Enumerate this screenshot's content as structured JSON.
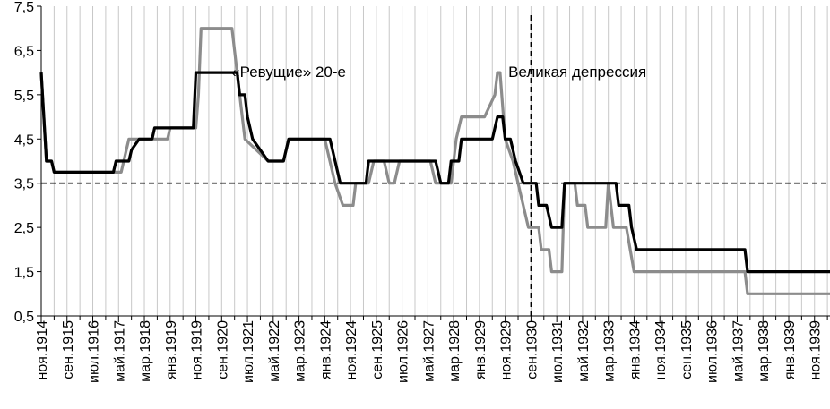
{
  "chart_data": {
    "type": "line",
    "title": "",
    "xlabel": "",
    "ylabel": "",
    "ylim": [
      0.5,
      7.5
    ],
    "y_ticks": [
      "0,5",
      "1,5",
      "2,5",
      "3,5",
      "4,5",
      "5,5",
      "6,5",
      "7,5"
    ],
    "x_tick_labels": [
      "ноя.1914",
      "сен.1915",
      "июл.1916",
      "май.1917",
      "мар.1918",
      "янв.1919",
      "ноя.1919",
      "сен.1920",
      "июл.1921",
      "май.1922",
      "мар.1923",
      "янв.1924",
      "ноя.1924",
      "сен.1925",
      "июл.1926",
      "май.1927",
      "мар.1928",
      "янв.1929",
      "ноя.1929",
      "сен.1930",
      "июл.1931",
      "май.1932",
      "мар.1933",
      "янв.1934",
      "ноя.1934",
      "сен.1935",
      "июл.1936",
      "май.1937",
      "мар.1938",
      "янв.1939",
      "ноя.1939"
    ],
    "x_range": [
      "1914-11",
      "1940-05"
    ],
    "grid": "vertical",
    "legend": "none",
    "reference_line": {
      "y": 3.5,
      "style": "dashed"
    },
    "divider": {
      "x": "1930-09",
      "style": "dashed"
    },
    "annotations": [
      {
        "text": "«Ревущие» 20-е",
        "x": "1922-11",
        "y": 6.0
      },
      {
        "text": "Великая депрессия",
        "x": "1932-03",
        "y": 6.0
      }
    ],
    "series": [
      {
        "color": "#8c8c8c",
        "points": [
          [
            "1914-11",
            6.0
          ],
          [
            "1914-12",
            5.0
          ],
          [
            "1915-01",
            4.0
          ],
          [
            "1915-03",
            4.0
          ],
          [
            "1915-04",
            3.75
          ],
          [
            "1917-06",
            3.75
          ],
          [
            "1917-08",
            4.25
          ],
          [
            "1917-09",
            4.5
          ],
          [
            "1918-12",
            4.5
          ],
          [
            "1919-01",
            4.75
          ],
          [
            "1919-11",
            4.75
          ],
          [
            "1919-12",
            5.5
          ],
          [
            "1920-01",
            7.0
          ],
          [
            "1920-02",
            7.0
          ],
          [
            "1921-01",
            7.0
          ],
          [
            "1921-04",
            5.5
          ],
          [
            "1921-06",
            4.5
          ],
          [
            "1922-03",
            4.0
          ],
          [
            "1922-09",
            4.0
          ],
          [
            "1922-11",
            4.5
          ],
          [
            "1924-01",
            4.5
          ],
          [
            "1924-05",
            3.5
          ],
          [
            "1924-08",
            3.0
          ],
          [
            "1924-12",
            3.0
          ],
          [
            "1925-01",
            3.5
          ],
          [
            "1925-06",
            3.5
          ],
          [
            "1925-08",
            4.0
          ],
          [
            "1925-12",
            4.0
          ],
          [
            "1926-02",
            3.5
          ],
          [
            "1926-04",
            3.5
          ],
          [
            "1926-06",
            4.0
          ],
          [
            "1927-06",
            4.0
          ],
          [
            "1927-08",
            3.5
          ],
          [
            "1928-02",
            3.5
          ],
          [
            "1928-04",
            4.5
          ],
          [
            "1928-06",
            5.0
          ],
          [
            "1929-03",
            5.0
          ],
          [
            "1929-07",
            5.5
          ],
          [
            "1929-08",
            6.0
          ],
          [
            "1929-09",
            6.0
          ],
          [
            "1929-11",
            4.5
          ],
          [
            "1930-02",
            4.0
          ],
          [
            "1930-04",
            3.5
          ],
          [
            "1930-08",
            2.5
          ],
          [
            "1930-10",
            2.5
          ],
          [
            "1930-12",
            2.5
          ],
          [
            "1931-01",
            2.0
          ],
          [
            "1931-04",
            2.0
          ],
          [
            "1931-05",
            1.5
          ],
          [
            "1931-09",
            1.5
          ],
          [
            "1931-10",
            3.5
          ],
          [
            "1932-02",
            3.5
          ],
          [
            "1932-03",
            3.0
          ],
          [
            "1932-06",
            3.0
          ],
          [
            "1932-07",
            2.5
          ],
          [
            "1933-02",
            2.5
          ],
          [
            "1933-03",
            3.5
          ],
          [
            "1933-05",
            2.5
          ],
          [
            "1933-10",
            2.5
          ],
          [
            "1934-01",
            1.5
          ],
          [
            "1937-08",
            1.5
          ],
          [
            "1937-09",
            1.0
          ],
          [
            "1940-05",
            1.0
          ]
        ]
      },
      {
        "color": "#000000",
        "points": [
          [
            "1914-11",
            6.0
          ],
          [
            "1914-12",
            5.0
          ],
          [
            "1915-01",
            4.0
          ],
          [
            "1915-03",
            4.0
          ],
          [
            "1915-04",
            3.75
          ],
          [
            "1917-03",
            3.75
          ],
          [
            "1917-04",
            4.0
          ],
          [
            "1917-09",
            4.0
          ],
          [
            "1917-10",
            4.25
          ],
          [
            "1918-01",
            4.5
          ],
          [
            "1918-06",
            4.5
          ],
          [
            "1918-07",
            4.75
          ],
          [
            "1919-10",
            4.75
          ],
          [
            "1919-11",
            6.0
          ],
          [
            "1921-03",
            6.0
          ],
          [
            "1921-04",
            5.5
          ],
          [
            "1921-06",
            5.5
          ],
          [
            "1921-07",
            5.0
          ],
          [
            "1921-09",
            4.5
          ],
          [
            "1922-03",
            4.0
          ],
          [
            "1922-09",
            4.0
          ],
          [
            "1922-11",
            4.5
          ],
          [
            "1924-03",
            4.5
          ],
          [
            "1924-07",
            3.5
          ],
          [
            "1925-05",
            3.5
          ],
          [
            "1925-06",
            4.0
          ],
          [
            "1927-08",
            4.0
          ],
          [
            "1927-10",
            3.5
          ],
          [
            "1928-01",
            3.5
          ],
          [
            "1928-02",
            4.0
          ],
          [
            "1928-05",
            4.0
          ],
          [
            "1928-06",
            4.5
          ],
          [
            "1929-06",
            4.5
          ],
          [
            "1929-08",
            5.0
          ],
          [
            "1929-10",
            5.0
          ],
          [
            "1929-11",
            4.5
          ],
          [
            "1930-01",
            4.5
          ],
          [
            "1930-03",
            4.0
          ],
          [
            "1930-06",
            3.5
          ],
          [
            "1930-11",
            3.5
          ],
          [
            "1930-12",
            3.0
          ],
          [
            "1931-03",
            3.0
          ],
          [
            "1931-05",
            2.5
          ],
          [
            "1931-09",
            2.5
          ],
          [
            "1931-10",
            3.5
          ],
          [
            "1933-06",
            3.5
          ],
          [
            "1933-07",
            3.0
          ],
          [
            "1933-11",
            3.0
          ],
          [
            "1933-12",
            2.5
          ],
          [
            "1934-02",
            2.0
          ],
          [
            "1937-08",
            2.0
          ],
          [
            "1937-09",
            1.5
          ],
          [
            "1940-05",
            1.5
          ]
        ]
      }
    ]
  }
}
